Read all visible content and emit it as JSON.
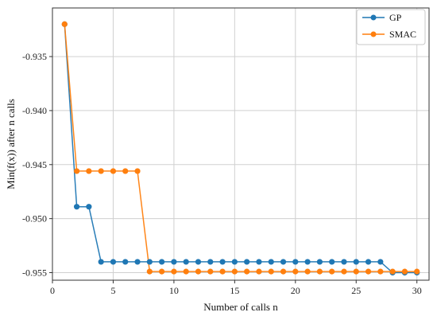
{
  "chart_data": {
    "type": "line",
    "title": "",
    "xlabel": "Number of calls n",
    "ylabel": "Min(f(x)) after n calls",
    "xlim": [
      0,
      31
    ],
    "ylim": [
      -0.9557,
      -0.9305
    ],
    "grid": true,
    "legend_position": "top-right",
    "x_ticks": [
      0,
      5,
      10,
      15,
      20,
      25,
      30
    ],
    "x_tick_labels": [
      "0",
      "5",
      "10",
      "15",
      "20",
      "25",
      "30"
    ],
    "y_ticks": [
      -0.935,
      -0.94,
      -0.945,
      -0.95,
      -0.955
    ],
    "y_tick_labels": [
      "-0.935",
      "-0.940",
      "-0.945",
      "-0.950",
      "-0.955"
    ],
    "x": [
      1,
      2,
      3,
      4,
      5,
      6,
      7,
      8,
      9,
      10,
      11,
      12,
      13,
      14,
      15,
      16,
      17,
      18,
      19,
      20,
      21,
      22,
      23,
      24,
      25,
      26,
      27,
      28,
      29,
      30
    ],
    "series": [
      {
        "name": "GP",
        "color": "#1f77b4",
        "values": [
          -0.932,
          -0.9489,
          -0.9489,
          -0.954,
          -0.954,
          -0.954,
          -0.954,
          -0.954,
          -0.954,
          -0.954,
          -0.954,
          -0.954,
          -0.954,
          -0.954,
          -0.954,
          -0.954,
          -0.954,
          -0.954,
          -0.954,
          -0.954,
          -0.954,
          -0.954,
          -0.954,
          -0.954,
          -0.954,
          -0.954,
          -0.954,
          -0.955,
          -0.955,
          -0.955
        ]
      },
      {
        "name": "SMAC",
        "color": "#ff7f0e",
        "values": [
          -0.932,
          -0.9456,
          -0.9456,
          -0.9456,
          -0.9456,
          -0.9456,
          -0.9456,
          -0.9549,
          -0.9549,
          -0.9549,
          -0.9549,
          -0.9549,
          -0.9549,
          -0.9549,
          -0.9549,
          -0.9549,
          -0.9549,
          -0.9549,
          -0.9549,
          -0.9549,
          -0.9549,
          -0.9549,
          -0.9549,
          -0.9549,
          -0.9549,
          -0.9549,
          -0.9549,
          -0.9549,
          -0.9549,
          -0.9549
        ]
      }
    ]
  }
}
